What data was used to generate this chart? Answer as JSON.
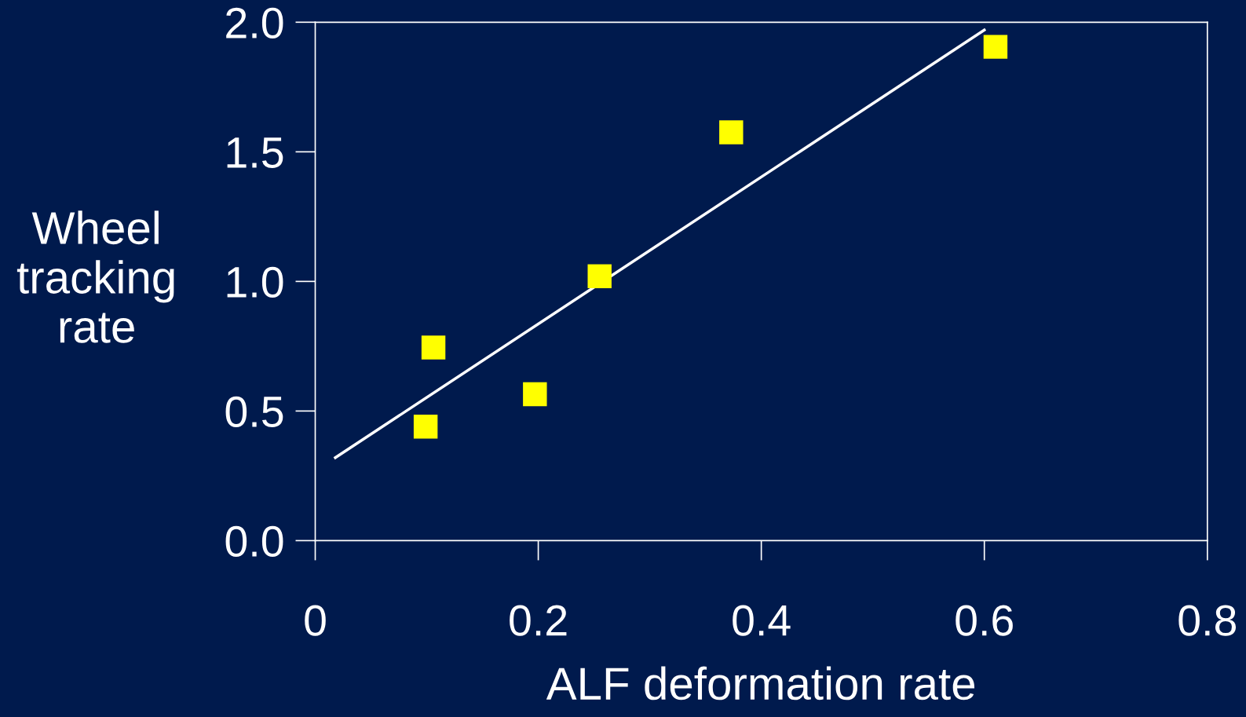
{
  "chart_data": {
    "type": "scatter",
    "xlabel": "ALF deformation rate",
    "ylabel": "Wheel\ntracking\nrate",
    "x": [
      0.099,
      0.106,
      0.197,
      0.255,
      0.373,
      0.61
    ],
    "series": [
      {
        "color": "#ffff00",
        "marker": "square",
        "values": [
          0.44,
          0.745,
          0.565,
          1.02,
          1.575,
          1.905
        ]
      },
      {
        "type": "line",
        "color": "#ffffff",
        "x": [
          0.018,
          0.6
        ],
        "values": [
          0.32,
          1.97
        ]
      }
    ],
    "grid": false,
    "legend": false,
    "xlim": [
      0,
      0.8
    ],
    "xticks": [
      0,
      0.2,
      0.4,
      0.6,
      0.8
    ],
    "ylim": [
      0,
      2.0
    ],
    "yticks": [
      {
        "value": 0,
        "label": "0.0"
      },
      {
        "value": 0.5,
        "label": "0.5"
      },
      {
        "value": 1.0,
        "label": "1.0"
      },
      {
        "value": 1.5,
        "label": "1.5"
      },
      {
        "value": 2.0,
        "label": "2.0"
      }
    ]
  }
}
